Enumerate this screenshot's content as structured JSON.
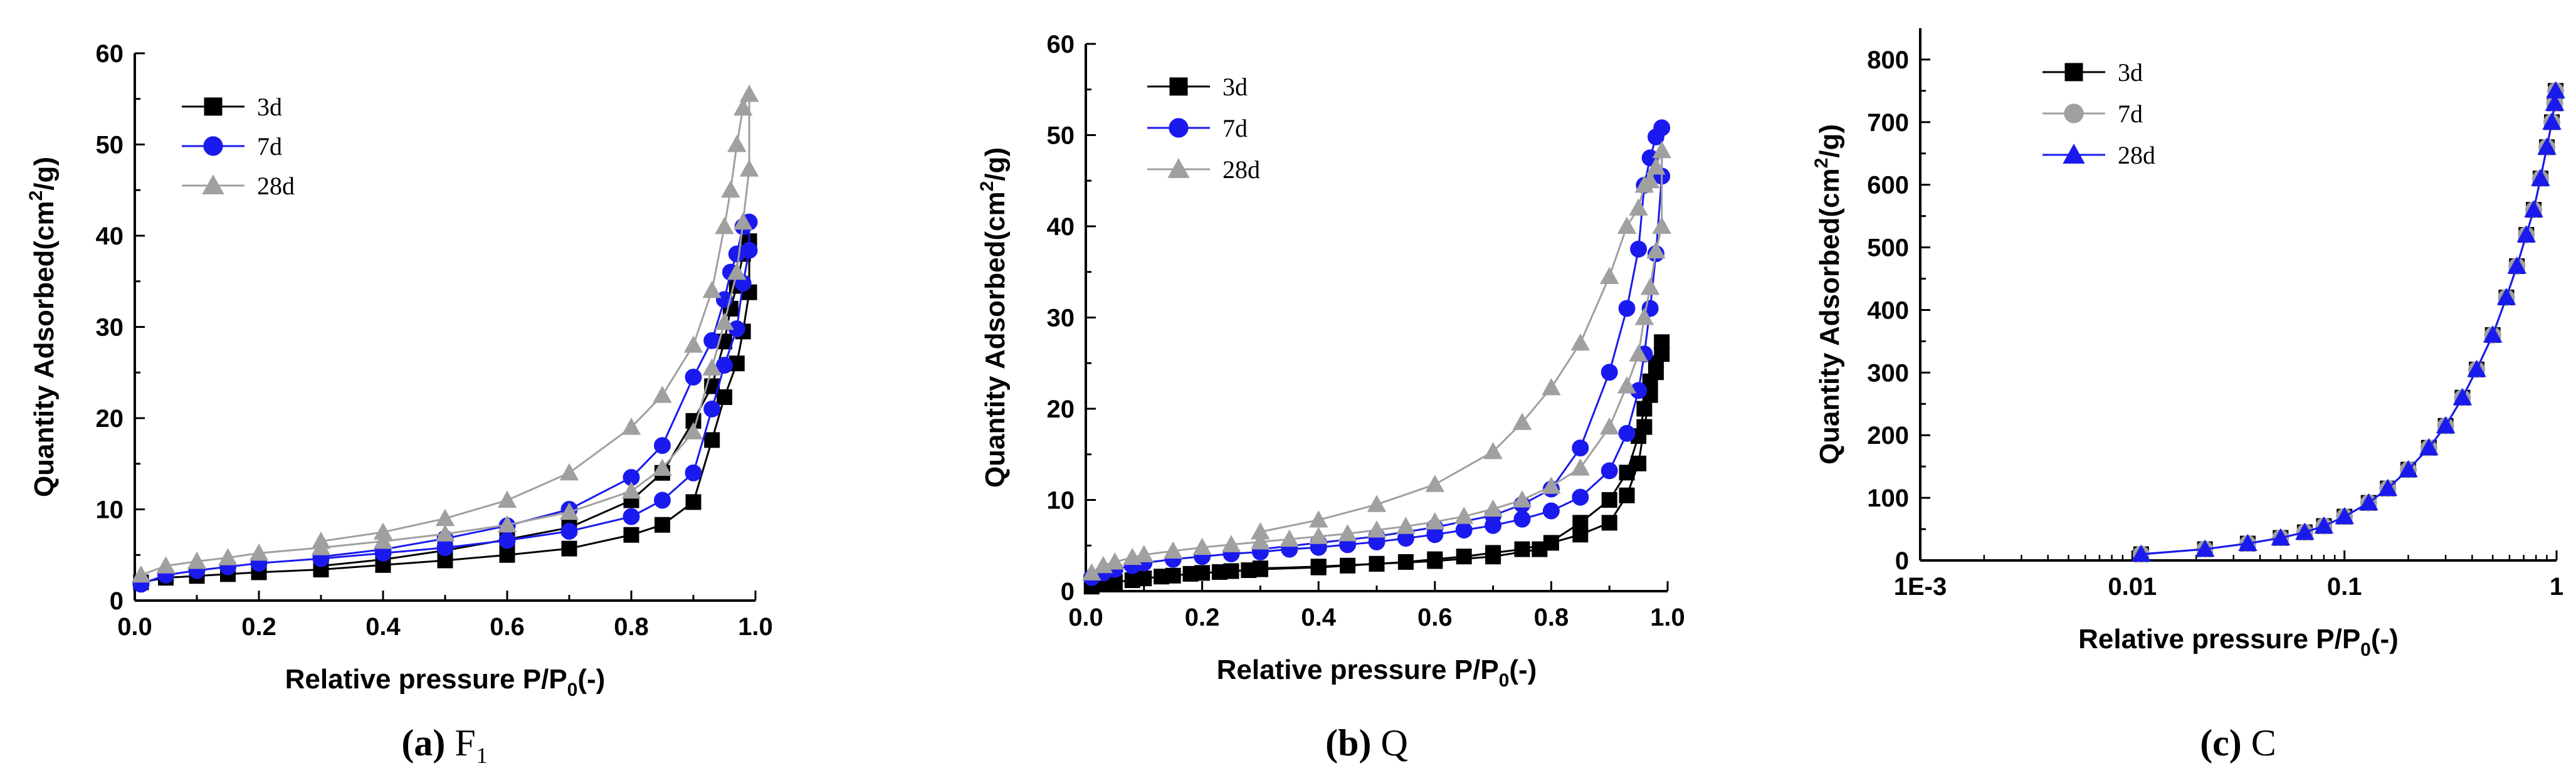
{
  "colors": {
    "s3d": "#000000",
    "s7d": "#1a1aee",
    "s28d": "#a0a0a0",
    "axis": "#000000"
  },
  "charts": [
    {
      "type": "line",
      "caption_letter": "(a)",
      "caption_rest": " F₁",
      "xlabel_main": "Relative pressure P/P",
      "xlabel_sub": "0",
      "xlabel_tail": "(-)",
      "ylabel_main": "Quantity Adsorbed(cm",
      "ylabel_sup": "2",
      "ylabel_tail": "/g)",
      "xlim": [
        0,
        1
      ],
      "ylim": [
        0,
        60
      ],
      "xticks": [
        0,
        0.2,
        0.4,
        0.6,
        0.8,
        1.0
      ],
      "xtick_labels": [
        "0.0",
        "0.2",
        "0.4",
        "0.6",
        "0.8",
        "1.0"
      ],
      "yticks": [
        0,
        10,
        20,
        30,
        40,
        50,
        60
      ],
      "ytick_labels": [
        "0",
        "10",
        "20",
        "30",
        "40",
        "50",
        "60"
      ],
      "series": [
        {
          "name": "3d",
          "marker": "square",
          "color": "#000000",
          "x": [
            0.01,
            0.05,
            0.1,
            0.15,
            0.2,
            0.3,
            0.4,
            0.5,
            0.6,
            0.7,
            0.8,
            0.85,
            0.9,
            0.93,
            0.95,
            0.97,
            0.98,
            0.99,
            0.99,
            0.98,
            0.97,
            0.96,
            0.95,
            0.93,
            0.9,
            0.85,
            0.8,
            0.7,
            0.6,
            0.5,
            0.4,
            0.3
          ],
          "y": [
            2,
            2.5,
            2.7,
            2.9,
            3.1,
            3.4,
            3.9,
            4.4,
            5,
            5.7,
            7.2,
            8.3,
            10.8,
            17.6,
            22.3,
            26,
            29.5,
            33.8,
            39.4,
            38,
            34.5,
            32,
            28.4,
            23.5,
            19.7,
            14,
            11,
            8,
            6.7,
            5.5,
            4.5,
            3.8
          ]
        },
        {
          "name": "7d",
          "marker": "circle",
          "color": "#1a1aee",
          "x": [
            0.01,
            0.05,
            0.1,
            0.15,
            0.2,
            0.3,
            0.4,
            0.5,
            0.6,
            0.7,
            0.8,
            0.85,
            0.9,
            0.93,
            0.95,
            0.97,
            0.98,
            0.99,
            0.99,
            0.98,
            0.97,
            0.96,
            0.95,
            0.93,
            0.9,
            0.85,
            0.8,
            0.7,
            0.6,
            0.5,
            0.4,
            0.3
          ],
          "y": [
            1.8,
            2.8,
            3.3,
            3.7,
            4.1,
            4.6,
            5.2,
            5.8,
            6.6,
            7.6,
            9.2,
            11,
            14,
            21,
            25.8,
            29.8,
            34.8,
            38.4,
            41.5,
            41,
            38,
            36,
            33,
            28.5,
            24.5,
            17,
            13.5,
            10,
            8.2,
            6.8,
            5.6,
            4.8
          ]
        },
        {
          "name": "28d",
          "marker": "triangle",
          "color": "#a0a0a0",
          "x": [
            0.01,
            0.05,
            0.1,
            0.15,
            0.2,
            0.3,
            0.4,
            0.5,
            0.6,
            0.7,
            0.8,
            0.85,
            0.9,
            0.93,
            0.95,
            0.97,
            0.98,
            0.99,
            0.99,
            0.98,
            0.97,
            0.96,
            0.95,
            0.93,
            0.9,
            0.85,
            0.8,
            0.7,
            0.6,
            0.5,
            0.4,
            0.3
          ],
          "y": [
            2.8,
            3.8,
            4.3,
            4.7,
            5.2,
            5.8,
            6.5,
            7.3,
            8.3,
            9.7,
            12,
            14.5,
            18.5,
            25.5,
            30.5,
            36,
            41.5,
            47.3,
            55.5,
            54,
            50,
            45,
            41,
            34,
            28,
            22.5,
            19,
            14,
            11,
            9,
            7.5,
            6.5
          ]
        }
      ]
    },
    {
      "type": "line",
      "caption_letter": "(b)",
      "caption_rest": " Q",
      "xlabel_main": "Relative pressure P/P",
      "xlabel_sub": "0",
      "xlabel_tail": "(-)",
      "ylabel_main": "Quantity Adsorbed(cm",
      "ylabel_sup": "2",
      "ylabel_tail": "/g)",
      "xlim": [
        0,
        1
      ],
      "ylim": [
        0,
        60
      ],
      "xticks": [
        0,
        0.2,
        0.4,
        0.6,
        0.8,
        1.0
      ],
      "xtick_labels": [
        "0.0",
        "0.2",
        "0.4",
        "0.6",
        "0.8",
        "1.0"
      ],
      "yticks": [
        0,
        10,
        20,
        30,
        40,
        50,
        60
      ],
      "ytick_labels": [
        "0",
        "10",
        "20",
        "30",
        "40",
        "50",
        "60"
      ],
      "series": [
        {
          "name": "3d",
          "marker": "square",
          "color": "#000000",
          "x": [
            0.01,
            0.03,
            0.05,
            0.08,
            0.1,
            0.13,
            0.15,
            0.18,
            0.2,
            0.23,
            0.25,
            0.28,
            0.3,
            0.4,
            0.45,
            0.5,
            0.55,
            0.6,
            0.65,
            0.7,
            0.75,
            0.8,
            0.85,
            0.9,
            0.93,
            0.95,
            0.96,
            0.97,
            0.98,
            0.99,
            0.99,
            0.98,
            0.97,
            0.96,
            0.95,
            0.93,
            0.9,
            0.85,
            0.78,
            0.7,
            0.6,
            0.5,
            0.4,
            0.3
          ],
          "y": [
            0.5,
            0.8,
            1,
            1.2,
            1.4,
            1.6,
            1.7,
            1.9,
            2,
            2.1,
            2.2,
            2.3,
            2.4,
            2.6,
            2.8,
            3,
            3.2,
            3.5,
            3.8,
            4.2,
            4.6,
            5.3,
            6.2,
            7.5,
            10.5,
            14,
            18,
            21.5,
            24,
            26,
            27.3,
            25,
            23,
            20,
            17,
            13,
            10,
            7.5,
            4.6,
            3.8,
            3.3,
            3,
            2.7,
            2.5
          ]
        },
        {
          "name": "7d",
          "marker": "circle",
          "color": "#1a1aee",
          "x": [
            0.01,
            0.03,
            0.05,
            0.08,
            0.1,
            0.15,
            0.2,
            0.25,
            0.3,
            0.35,
            0.4,
            0.45,
            0.5,
            0.55,
            0.6,
            0.65,
            0.7,
            0.75,
            0.8,
            0.85,
            0.9,
            0.93,
            0.95,
            0.96,
            0.97,
            0.98,
            0.99,
            0.99,
            0.98,
            0.97,
            0.96,
            0.95,
            0.93,
            0.9,
            0.85,
            0.8,
            0.75,
            0.7,
            0.6,
            0.5,
            0.4,
            0.3
          ],
          "y": [
            1.5,
            2,
            2.4,
            2.8,
            3.1,
            3.5,
            3.8,
            4.1,
            4.3,
            4.6,
            4.8,
            5.1,
            5.4,
            5.8,
            6.2,
            6.7,
            7.2,
            7.9,
            8.8,
            10.3,
            13.2,
            17.3,
            22,
            26,
            31,
            37,
            45.5,
            50.8,
            49.8,
            47.5,
            44.5,
            37.5,
            31,
            24,
            15.7,
            11.2,
            9.5,
            8.3,
            7,
            6,
            5.3,
            4.6
          ]
        },
        {
          "name": "28d",
          "marker": "triangle",
          "color": "#a0a0a0",
          "x": [
            0.01,
            0.03,
            0.05,
            0.08,
            0.1,
            0.15,
            0.2,
            0.25,
            0.3,
            0.35,
            0.4,
            0.45,
            0.5,
            0.55,
            0.6,
            0.65,
            0.7,
            0.75,
            0.8,
            0.85,
            0.9,
            0.93,
            0.95,
            0.96,
            0.97,
            0.98,
            0.99,
            0.99,
            0.98,
            0.97,
            0.96,
            0.95,
            0.93,
            0.9,
            0.85,
            0.8,
            0.75,
            0.7,
            0.6,
            0.5,
            0.4,
            0.3
          ],
          "y": [
            2,
            2.8,
            3.2,
            3.7,
            4,
            4.4,
            4.8,
            5.1,
            5.4,
            5.7,
            6,
            6.3,
            6.7,
            7.1,
            7.6,
            8.2,
            9,
            10,
            11.5,
            13.5,
            18,
            22.5,
            26,
            30,
            33.3,
            37.3,
            40,
            48.3,
            46.5,
            45,
            44.5,
            42,
            40,
            34.5,
            27.2,
            22.3,
            18.5,
            15.3,
            11.7,
            9.5,
            7.8,
            6.5
          ]
        }
      ]
    },
    {
      "type": "line",
      "caption_letter": "(c)",
      "caption_rest": " C",
      "xlabel_main": "Relative pressure P/P",
      "xlabel_sub": "0",
      "xlabel_tail": "(-)",
      "ylabel_main": "Quantity Adsorbed(cm",
      "ylabel_sup": "2",
      "ylabel_tail": "/g)",
      "xscale": "log",
      "xlim": [
        0.001,
        1
      ],
      "ylim": [
        0,
        850
      ],
      "xticks": [
        0.001,
        0.01,
        0.1,
        1
      ],
      "xtick_labels": [
        "1E-3",
        "0.01",
        "0.1",
        "1"
      ],
      "yticks": [
        0,
        100,
        200,
        300,
        400,
        500,
        600,
        700,
        800
      ],
      "ytick_labels": [
        "0",
        "100",
        "200",
        "300",
        "400",
        "500",
        "600",
        "700",
        "800"
      ],
      "series": [
        {
          "name": "3d",
          "marker": "square",
          "color": "#000000",
          "x": [
            0.011,
            0.022,
            0.035,
            0.05,
            0.065,
            0.08,
            0.1,
            0.13,
            0.16,
            0.2,
            0.25,
            0.3,
            0.36,
            0.42,
            0.5,
            0.58,
            0.65,
            0.72,
            0.78,
            0.84,
            0.9,
            0.95,
            0.98,
            0.99
          ],
          "y": [
            10,
            18,
            27,
            36,
            45,
            55,
            70,
            92,
            115,
            145,
            180,
            215,
            260,
            305,
            360,
            420,
            470,
            520,
            560,
            610,
            660,
            700,
            730,
            750
          ]
        },
        {
          "name": "7d",
          "marker": "circle",
          "color": "#a0a0a0",
          "x": [
            0.011,
            0.022,
            0.035,
            0.05,
            0.065,
            0.08,
            0.1,
            0.13,
            0.16,
            0.2,
            0.25,
            0.3,
            0.36,
            0.42,
            0.5,
            0.58,
            0.65,
            0.72,
            0.78,
            0.84,
            0.9,
            0.95,
            0.98,
            0.99
          ],
          "y": [
            10,
            18,
            27,
            36,
            45,
            55,
            70,
            92,
            115,
            145,
            180,
            215,
            260,
            305,
            360,
            420,
            470,
            520,
            560,
            610,
            660,
            700,
            730,
            750
          ]
        },
        {
          "name": "28d",
          "marker": "triangle",
          "color": "#1a1aee",
          "x": [
            0.011,
            0.022,
            0.035,
            0.05,
            0.065,
            0.08,
            0.1,
            0.13,
            0.16,
            0.2,
            0.25,
            0.3,
            0.36,
            0.42,
            0.5,
            0.58,
            0.65,
            0.72,
            0.78,
            0.84,
            0.9,
            0.95,
            0.98,
            0.99
          ],
          "y": [
            10,
            18,
            27,
            36,
            45,
            55,
            70,
            92,
            115,
            145,
            180,
            215,
            260,
            305,
            360,
            420,
            470,
            520,
            560,
            610,
            660,
            700,
            730,
            750
          ]
        }
      ]
    }
  ]
}
